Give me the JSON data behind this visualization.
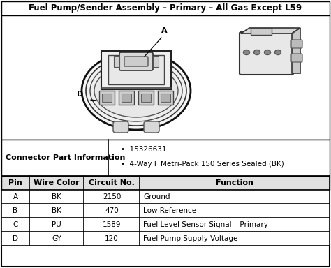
{
  "title": "Fuel Pump/Sender Assembly – Primary – All Gas Except L59",
  "connector_label": "Connector Part Information",
  "connector_info": [
    "15326631",
    "4-Way F Metri-Pack 150 Series Sealed (BK)"
  ],
  "table_headers": [
    "Pin",
    "Wire Color",
    "Circuit No.",
    "Function"
  ],
  "table_rows": [
    [
      "A",
      "BK",
      "2150",
      "Ground"
    ],
    [
      "B",
      "BK",
      "470",
      "Low Reference"
    ],
    [
      "C",
      "PU",
      "1589",
      "Fuel Level Sensor Signal – Primary"
    ],
    [
      "D",
      "GY",
      "120",
      "Fuel Pump Supply Voltage"
    ]
  ],
  "bg_color": "#ffffff",
  "border_color": "#000000",
  "header_bg": "#e0e0e0",
  "text_color": "#000000",
  "font_size_title": 8.5,
  "font_size_table": 7.5,
  "font_size_header": 8.0,
  "fig_w": 4.74,
  "fig_h": 3.84,
  "dpi": 100
}
